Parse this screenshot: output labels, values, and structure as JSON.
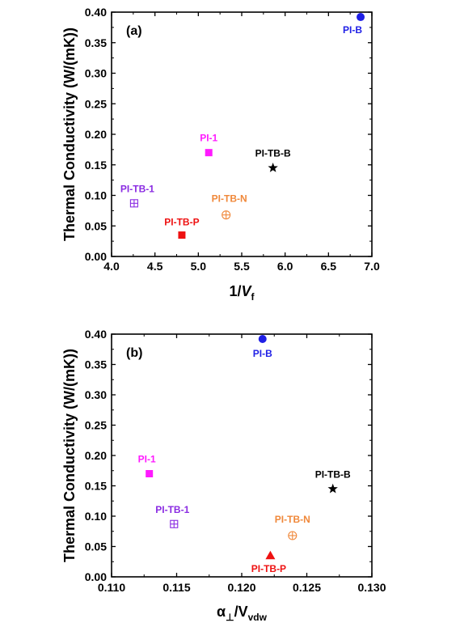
{
  "chart_data": [
    {
      "type": "scatter",
      "panel_label": "(a)",
      "xlabel": "1/V",
      "xlabel_sub": "f",
      "ylabel": "Thermal Conductivity (W/(mK))",
      "xlim": [
        4.0,
        7.0
      ],
      "ylim": [
        0.0,
        0.4
      ],
      "xticks": [
        4.0,
        4.5,
        5.0,
        5.5,
        6.0,
        6.5,
        7.0
      ],
      "yticks": [
        0.0,
        0.05,
        0.1,
        0.15,
        0.2,
        0.25,
        0.3,
        0.35,
        0.4
      ],
      "x_decimals": 1,
      "y_decimals": 2,
      "grid": false,
      "points": [
        {
          "name": "PI-B",
          "x": 6.87,
          "y": 0.392,
          "marker": "circle",
          "color": "#1f1fe6",
          "label_dx": -10,
          "label_dy": 20
        },
        {
          "name": "PI-1",
          "x": 5.12,
          "y": 0.17,
          "marker": "square",
          "color": "#ff1aff",
          "label_dx": 0,
          "label_dy": -14
        },
        {
          "name": "PI-TB-B",
          "x": 5.86,
          "y": 0.145,
          "marker": "star",
          "color": "#000000",
          "label_dx": 0,
          "label_dy": -14
        },
        {
          "name": "PI-TB-1",
          "x": 4.26,
          "y": 0.087,
          "marker": "square-plus",
          "color": "#8a2be2",
          "label_dx": 4,
          "label_dy": -14
        },
        {
          "name": "PI-TB-N",
          "x": 5.32,
          "y": 0.068,
          "marker": "circle-plus",
          "color": "#f0883a",
          "label_dx": 4,
          "label_dy": -16
        },
        {
          "name": "PI-TB-P",
          "x": 4.81,
          "y": 0.035,
          "marker": "square",
          "color": "#ee1111",
          "label_dx": 0,
          "label_dy": -12
        }
      ]
    },
    {
      "type": "scatter",
      "panel_label": "(b)",
      "xlabel": "α",
      "xlabel_sub": "⊥",
      "xlabel_mid": "/V",
      "xlabel_sub2": "vdw",
      "ylabel": "Thermal Conductivity (W/(mK))",
      "xlim": [
        0.11,
        0.13
      ],
      "ylim": [
        0.0,
        0.4
      ],
      "xticks": [
        0.11,
        0.115,
        0.12,
        0.125,
        0.13
      ],
      "yticks": [
        0.0,
        0.05,
        0.1,
        0.15,
        0.2,
        0.25,
        0.3,
        0.35,
        0.4
      ],
      "x_decimals": 3,
      "y_decimals": 2,
      "grid": false,
      "points": [
        {
          "name": "PI-B",
          "x": 0.1216,
          "y": 0.392,
          "marker": "circle",
          "color": "#1f1fe6",
          "label_dx": 0,
          "label_dy": 22
        },
        {
          "name": "PI-1",
          "x": 0.1129,
          "y": 0.17,
          "marker": "square",
          "color": "#ff1aff",
          "label_dx": -3,
          "label_dy": -14
        },
        {
          "name": "PI-TB-B",
          "x": 0.127,
          "y": 0.145,
          "marker": "star",
          "color": "#000000",
          "label_dx": 0,
          "label_dy": -14
        },
        {
          "name": "PI-TB-1",
          "x": 0.1148,
          "y": 0.087,
          "marker": "square-plus",
          "color": "#8a2be2",
          "label_dx": -2,
          "label_dy": -14
        },
        {
          "name": "PI-TB-N",
          "x": 0.1239,
          "y": 0.068,
          "marker": "circle-plus",
          "color": "#f0883a",
          "label_dx": 0,
          "label_dy": -16
        },
        {
          "name": "PI-TB-P",
          "x": 0.1222,
          "y": 0.035,
          "marker": "triangle",
          "color": "#ee1111",
          "label_dx": -2,
          "label_dy": 20
        }
      ]
    }
  ]
}
